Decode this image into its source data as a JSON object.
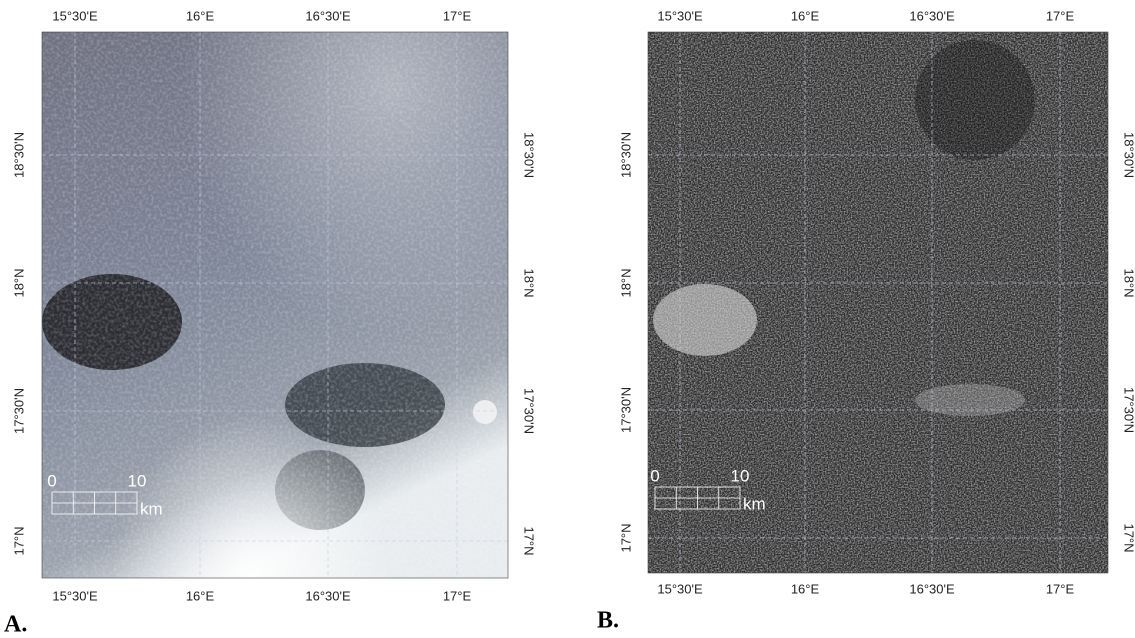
{
  "panels": [
    {
      "label": "A.",
      "top_ticks": [
        "15°30'E",
        "16°E",
        "16°30'E",
        "17°E"
      ],
      "bottom_ticks": [
        "15°30'E",
        "16°E",
        "16°30'E",
        "17°E"
      ],
      "left_ticks": [
        "18°30'N",
        "18°N",
        "17°30'N",
        "17°N"
      ],
      "right_ticks": [
        "18°30'N",
        "18°N",
        "17°30'N",
        "17°N"
      ],
      "scale": {
        "start": "0",
        "end": "10",
        "unit": "km"
      }
    },
    {
      "label": "B.",
      "top_ticks": [
        "15°30'E",
        "16°E",
        "16°30'E",
        "17°E"
      ],
      "bottom_ticks": [
        "15°30'E",
        "16°E",
        "16°30'E",
        "17°E"
      ],
      "left_ticks": [
        "18°30'N",
        "18°N",
        "17°30'N",
        "17°N"
      ],
      "right_ticks": [
        "18°30'N",
        "18°N",
        "17°30'N",
        "17°N"
      ],
      "scale": {
        "start": "0",
        "end": "10",
        "unit": "km"
      }
    }
  ]
}
